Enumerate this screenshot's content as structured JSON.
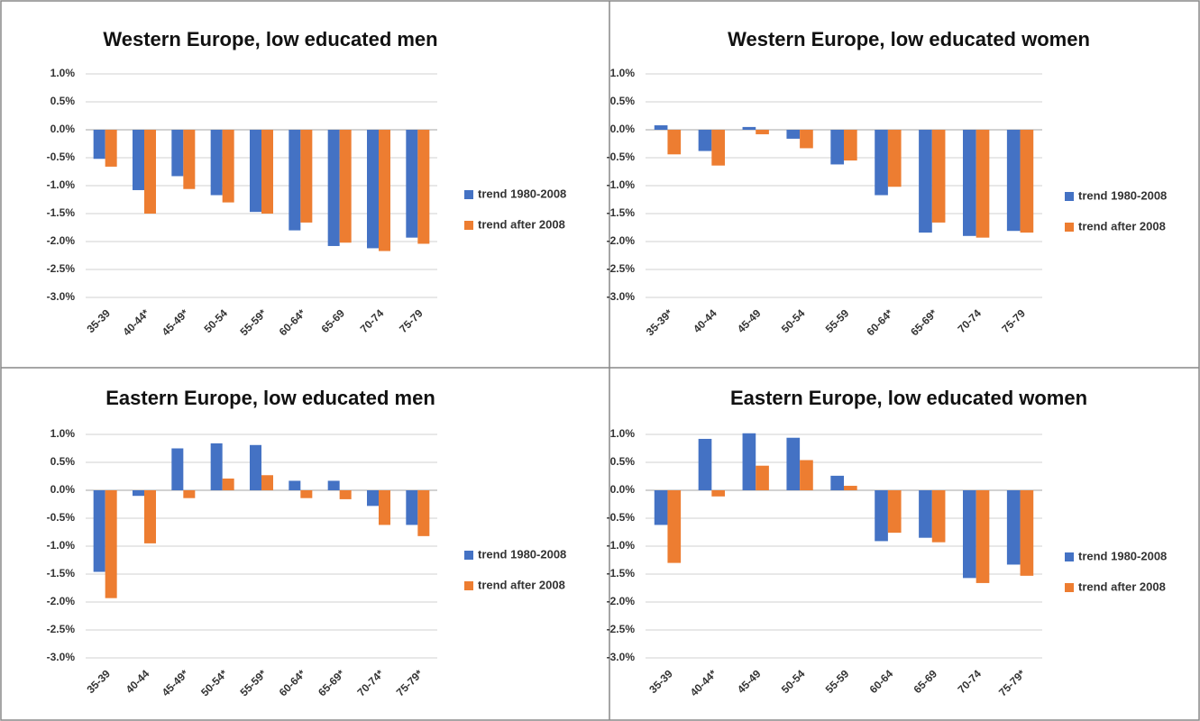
{
  "chart_data": [
    {
      "type": "bar",
      "title": "Western Europe, low educated men",
      "categories": [
        "35-39",
        "40-44*",
        "45-49*",
        "50-54",
        "55-59*",
        "60-64*",
        "65-69",
        "70-74",
        "75-79"
      ],
      "series": [
        {
          "name": "trend 1980-2008",
          "color": "#4472c4",
          "values": [
            -0.52,
            -1.08,
            -0.83,
            -1.17,
            -1.47,
            -1.8,
            -2.08,
            -2.12,
            -1.93
          ]
        },
        {
          "name": "trend after 2008",
          "color": "#ed7d31",
          "values": [
            -0.66,
            -1.5,
            -1.06,
            -1.3,
            -1.5,
            -1.66,
            -2.02,
            -2.17,
            -2.04
          ]
        }
      ],
      "ylim": [
        -3,
        1
      ],
      "yticks": [
        {
          "value": 1,
          "label": "1.0%"
        },
        {
          "value": 0.5,
          "label": "0.5%"
        },
        {
          "value": 0,
          "label": "0.0%"
        },
        {
          "value": -0.5,
          "label": "-0.5%"
        },
        {
          "value": -1,
          "label": "-1.0%"
        },
        {
          "value": -1.5,
          "label": "-1.5%"
        },
        {
          "value": -2,
          "label": "-2.0%"
        },
        {
          "value": -2.5,
          "label": "-2.5%"
        },
        {
          "value": -3,
          "label": "-3.0%"
        }
      ],
      "grid": true,
      "legend": "right"
    },
    {
      "type": "bar",
      "title": "Western Europe, low educated women",
      "categories": [
        "35-39*",
        "40-44",
        "45-49",
        "50-54",
        "55-59",
        "60-64*",
        "65-69*",
        "70-74",
        "75-79"
      ],
      "series": [
        {
          "name": "trend 1980-2008",
          "color": "#4472c4",
          "values": [
            0.08,
            -0.38,
            0.05,
            -0.16,
            -0.62,
            -1.17,
            -1.84,
            -1.9,
            -1.81
          ]
        },
        {
          "name": "trend after 2008",
          "color": "#ed7d31",
          "values": [
            -0.44,
            -0.64,
            -0.08,
            -0.33,
            -0.55,
            -1.02,
            -1.66,
            -1.93,
            -1.84
          ]
        }
      ],
      "ylim": [
        -3,
        1
      ],
      "yticks": [
        {
          "value": 1,
          "label": "1.0%"
        },
        {
          "value": 0.5,
          "label": "0.5%"
        },
        {
          "value": 0,
          "label": "0.0%"
        },
        {
          "value": -0.5,
          "label": "-0.5%"
        },
        {
          "value": -1,
          "label": "-1.0%"
        },
        {
          "value": -1.5,
          "label": "-1.5%"
        },
        {
          "value": -2,
          "label": "-2.0%"
        },
        {
          "value": -2.5,
          "label": "-2.5%"
        },
        {
          "value": -3,
          "label": "-3.0%"
        }
      ],
      "grid": true,
      "legend": "right"
    },
    {
      "type": "bar",
      "title": "Eastern Europe, low educated men",
      "categories": [
        "35-39",
        "40-44",
        "45-49*",
        "50-54*",
        "55-59*",
        "60-64*",
        "65-69*",
        "70-74*",
        "75-79*"
      ],
      "series": [
        {
          "name": "trend 1980-2008",
          "color": "#4472c4",
          "values": [
            -1.46,
            -0.1,
            0.75,
            0.84,
            0.81,
            0.17,
            0.17,
            -0.28,
            -0.62
          ]
        },
        {
          "name": "trend after 2008",
          "color": "#ed7d31",
          "values": [
            -1.93,
            -0.95,
            -0.14,
            0.21,
            0.27,
            -0.14,
            -0.16,
            -0.62,
            -0.82
          ]
        }
      ],
      "ylim": [
        -3,
        1
      ],
      "yticks": [
        {
          "value": 1,
          "label": "1.0%"
        },
        {
          "value": 0.5,
          "label": "0.5%"
        },
        {
          "value": 0,
          "label": "0.0%"
        },
        {
          "value": -0.5,
          "label": "-0.5%"
        },
        {
          "value": -1,
          "label": "-1.0%"
        },
        {
          "value": -1.5,
          "label": "-1.5%"
        },
        {
          "value": -2,
          "label": "-2.0%"
        },
        {
          "value": -2.5,
          "label": "-2.5%"
        },
        {
          "value": -3,
          "label": "-3.0%"
        }
      ],
      "grid": true,
      "legend": "right"
    },
    {
      "type": "bar",
      "title": "Eastern Europe, low educated women",
      "categories": [
        "35-39",
        "40-44*",
        "45-49",
        "50-54",
        "55-59",
        "60-64",
        "65-69",
        "70-74",
        "75-79*"
      ],
      "series": [
        {
          "name": "trend 1980-2008",
          "color": "#4472c4",
          "values": [
            -0.62,
            0.92,
            1.02,
            0.94,
            0.26,
            -0.91,
            -0.85,
            -1.57,
            -1.33
          ]
        },
        {
          "name": "trend after 2008",
          "color": "#ed7d31",
          "values": [
            -1.3,
            -0.11,
            0.44,
            0.54,
            0.08,
            -0.76,
            -0.93,
            -1.66,
            -1.53
          ]
        }
      ],
      "ylim": [
        -3,
        1
      ],
      "yticks": [
        {
          "value": 1,
          "label": "1.0%"
        },
        {
          "value": 0.5,
          "label": "0.5%"
        },
        {
          "value": 0,
          "label": "0.0%"
        },
        {
          "value": -0.5,
          "label": "-0.5%"
        },
        {
          "value": -1,
          "label": "-1.0%"
        },
        {
          "value": -1.5,
          "label": "-1.5%"
        },
        {
          "value": -2,
          "label": "-2.0%"
        },
        {
          "value": -2.5,
          "label": "-2.5%"
        },
        {
          "value": -3,
          "label": "-3.0%"
        }
      ],
      "grid": true,
      "legend": "right"
    }
  ]
}
